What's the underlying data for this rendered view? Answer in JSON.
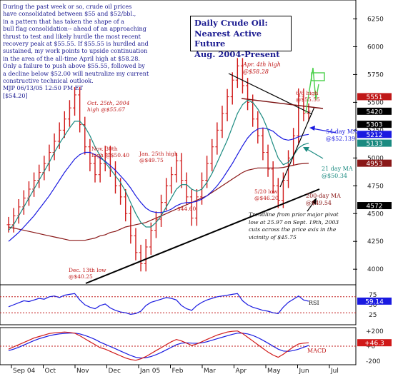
{
  "commentary": {
    "lines": [
      "During the past week or so, crude oil prices",
      "have consolidated between $55 and $52/bbl.,",
      "in a pattern that has taken the shape of a",
      "bull flag consolidation-- ahead of an approaching",
      "thrust to test and likely hurdle the most recent",
      "recovery peak at $55.55.  If $55.55 is hurdled and",
      "sustained, my work points to upside continuation",
      "in the area of the all-time April high at $58.28.",
      "Only a failure to push above $55.55, followed by",
      "a decline below $52.00 will neutralize my current",
      "constructive technical outlook.",
      "MJP 06/13/05   12:50 PM ET",
      "[$54.20]"
    ]
  },
  "title_box": {
    "lines": [
      "Daily Crude Oil:",
      "Nearest Active Future",
      "Aug. 2004-Present"
    ]
  },
  "annotations": {
    "apr_high": [
      "Apr. 4th high",
      "@$58.28"
    ],
    "jun6_high": [
      "6/6 high",
      "@$55.55"
    ],
    "oct25_high": [
      "Oct. 25th, 2004",
      "high @$55.67"
    ],
    "nov30_high": [
      "Nov. 30th",
      "high @$50.40"
    ],
    "jan25_high": [
      "Jan. 25th high",
      "@$49.75"
    ],
    "feb_low": [
      "$44.60"
    ],
    "dec13_low": [
      "Dec. 13th low",
      "@$40.25"
    ],
    "may20_low": [
      "5/20 low",
      "@$46.20"
    ],
    "ma54": [
      "54-day MA",
      "@$52.139"
    ],
    "ma21": [
      "21 day MA",
      "@$50.34"
    ],
    "ma200": [
      "200-day MA",
      "@$49.54"
    ],
    "trendline": [
      "Trendline from prior major pivot",
      "low at 25.97 on Sept. 19th, 2003",
      "cuts across the price axis in the",
      "vicinity of $45.75"
    ]
  },
  "indicator_labels": {
    "rsi": "RSI",
    "macd": "MACD"
  },
  "colors": {
    "price": "#d01818",
    "ma21": "#1a8a80",
    "ma54": "#1a1ae0",
    "ma200": "#8a1818",
    "rsi": "#1a1ae0",
    "macd_fast": "#d01818",
    "macd_slow": "#1a1ae0",
    "title": "#1a1a90",
    "comment": "#1a1a90",
    "annot_red": "#c01818",
    "annot_blue": "#1a1ae0",
    "annot_teal": "#1a8a80",
    "annot_brown": "#8a1818"
  },
  "chart_data": [
    {
      "type": "ohlc",
      "title": "Daily Crude Oil: Nearest Active Future Aug. 2004-Present",
      "ylim": [
        3860,
        6420
      ],
      "yticks": [
        "6250",
        "6000",
        "5750",
        "5500",
        "5250",
        "5000",
        "4750",
        "4500",
        "4250",
        "4000"
      ],
      "ytick_values": [
        6250,
        6000,
        5750,
        5500,
        5250,
        5000,
        4750,
        4500,
        4250,
        4000
      ],
      "x_labels": [
        "Sep 04",
        "Oct",
        "Nov",
        "Dec",
        "Jan 05",
        "Feb",
        "Mar",
        "Apr",
        "May",
        "Jun",
        "Jul"
      ],
      "price_tags": [
        {
          "label": "5551",
          "value": 5551,
          "color": "#c01818"
        },
        {
          "label": "5420",
          "value": 5420,
          "color": "#000000"
        },
        {
          "label": "5303",
          "value": 5303,
          "color": "#000000"
        },
        {
          "label": "5212",
          "value": 5212,
          "color": "#1a1ae0"
        },
        {
          "label": "5133",
          "value": 5133,
          "color": "#1a8a80"
        },
        {
          "label": "4953",
          "value": 4953,
          "color": "#8a1818"
        },
        {
          "label": "4572",
          "value": 4572,
          "color": "#000000"
        }
      ],
      "close": [
        4400,
        4480,
        4560,
        4640,
        4720,
        4800,
        4870,
        4950,
        5050,
        5150,
        5250,
        5350,
        5450,
        5567,
        5300,
        5100,
        4950,
        4850,
        4950,
        5040,
        4900,
        4750,
        4650,
        4500,
        4300,
        4150,
        4050,
        4200,
        4350,
        4450,
        4600,
        4750,
        4850,
        4975,
        4800,
        4650,
        4460,
        4650,
        4800,
        4950,
        5100,
        5250,
        5400,
        5550,
        5700,
        5828,
        5650,
        5500,
        5350,
        5200,
        5050,
        4900,
        4750,
        4620,
        4800,
        5000,
        5200,
        5555,
        5400,
        5420
      ],
      "ma21": [
        4350,
        4400,
        4480,
        4560,
        4640,
        4720,
        4800,
        4880,
        4960,
        5050,
        5130,
        5200,
        5270,
        5330,
        5330,
        5280,
        5200,
        5100,
        5020,
        4960,
        4900,
        4840,
        4780,
        4700,
        4600,
        4500,
        4420,
        4380,
        4380,
        4420,
        4480,
        4560,
        4640,
        4720,
        4760,
        4760,
        4720,
        4700,
        4720,
        4780,
        4860,
        4960,
        5060,
        5160,
        5280,
        5400,
        5480,
        5520,
        5500,
        5440,
        5360,
        5250,
        5120,
        5000,
        4940,
        4960,
        5020,
        5090,
        5120,
        5133
      ],
      "ma54": [
        4250,
        4290,
        4330,
        4380,
        4430,
        4480,
        4540,
        4600,
        4660,
        4730,
        4800,
        4870,
        4930,
        4990,
        5030,
        5050,
        5050,
        5030,
        5000,
        4970,
        4930,
        4890,
        4840,
        4790,
        4730,
        4660,
        4600,
        4550,
        4520,
        4510,
        4510,
        4520,
        4540,
        4570,
        4590,
        4600,
        4600,
        4610,
        4630,
        4660,
        4700,
        4750,
        4810,
        4880,
        4950,
        5030,
        5110,
        5180,
        5230,
        5260,
        5270,
        5260,
        5240,
        5200,
        5170,
        5160,
        5170,
        5190,
        5205,
        5212
      ],
      "ma200": [
        4380,
        4370,
        4360,
        4350,
        4340,
        4330,
        4320,
        4310,
        4300,
        4290,
        4280,
        4270,
        4260,
        4260,
        4260,
        4260,
        4270,
        4280,
        4300,
        4310,
        4330,
        4340,
        4360,
        4380,
        4390,
        4400,
        4410,
        4420,
        4440,
        4460,
        4480,
        4500,
        4520,
        4540,
        4560,
        4580,
        4600,
        4620,
        4640,
        4660,
        4690,
        4720,
        4750,
        4780,
        4810,
        4840,
        4870,
        4890,
        4900,
        4910,
        4910,
        4910,
        4910,
        4910,
        4915,
        4925,
        4935,
        4945,
        4950,
        4953
      ]
    },
    {
      "type": "line",
      "name": "RSI",
      "ylim": [
        0,
        100
      ],
      "yticks": [
        "75",
        "50",
        "25"
      ],
      "ytick_values": [
        75,
        50,
        25
      ],
      "readout": "59.14",
      "values": [
        45,
        50,
        55,
        60,
        58,
        62,
        66,
        64,
        70,
        72,
        68,
        74,
        76,
        78,
        62,
        50,
        44,
        40,
        48,
        52,
        42,
        36,
        32,
        30,
        26,
        28,
        34,
        48,
        56,
        60,
        64,
        68,
        66,
        62,
        48,
        40,
        36,
        48,
        56,
        62,
        66,
        70,
        72,
        74,
        76,
        78,
        60,
        50,
        44,
        40,
        36,
        34,
        30,
        28,
        44,
        56,
        64,
        72,
        62,
        59
      ]
    },
    {
      "type": "line",
      "name": "MACD",
      "ylim": [
        -250,
        250
      ],
      "yticks": [
        "+200",
        "+0",
        "-200"
      ],
      "ytick_values": [
        200,
        0,
        -200
      ],
      "readout": "+46.3",
      "fast": [
        -40,
        -10,
        20,
        50,
        80,
        110,
        130,
        150,
        170,
        180,
        185,
        190,
        185,
        175,
        140,
        100,
        60,
        20,
        -20,
        -40,
        -70,
        -100,
        -130,
        -160,
        -180,
        -190,
        -170,
        -140,
        -100,
        -60,
        -20,
        20,
        60,
        90,
        70,
        40,
        10,
        30,
        60,
        90,
        120,
        150,
        170,
        190,
        200,
        205,
        170,
        120,
        70,
        20,
        -30,
        -80,
        -120,
        -150,
        -110,
        -60,
        -10,
        30,
        40,
        46
      ],
      "slow": [
        -60,
        -40,
        -15,
        15,
        45,
        75,
        100,
        120,
        140,
        155,
        165,
        172,
        176,
        176,
        165,
        145,
        120,
        90,
        55,
        25,
        -5,
        -35,
        -65,
        -95,
        -125,
        -150,
        -160,
        -155,
        -140,
        -115,
        -85,
        -50,
        -15,
        20,
        40,
        45,
        40,
        38,
        45,
        60,
        80,
        100,
        120,
        140,
        160,
        175,
        175,
        165,
        145,
        115,
        80,
        40,
        0,
        -40,
        -65,
        -70,
        -60,
        -40,
        -15,
        10
      ]
    }
  ]
}
